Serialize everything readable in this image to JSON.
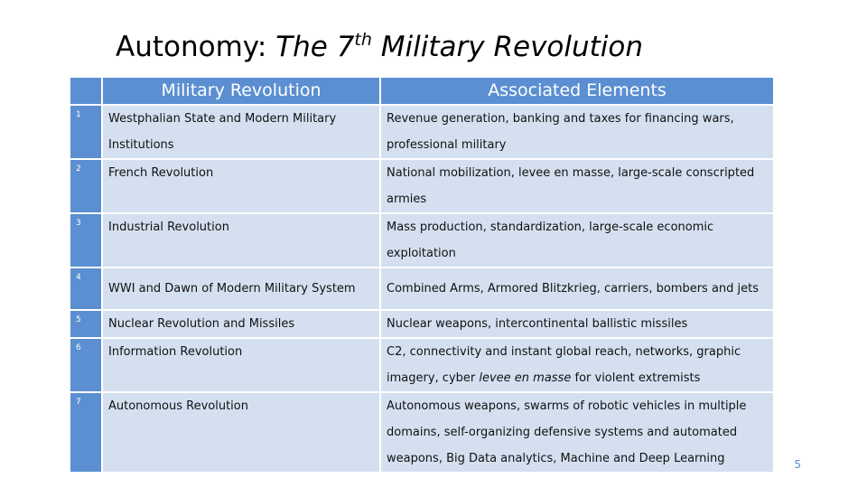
{
  "slide": {
    "title_prefix": "Autonomy: ",
    "title_italic": "The 7",
    "title_sup": "th",
    "title_suffix": " Military Revolution",
    "page_number": "5"
  },
  "table": {
    "headers": [
      "Military Revolution",
      "Associated Elements"
    ],
    "rows": [
      {
        "num": "1",
        "revolution": "Westphalian State and Modern Military Institutions",
        "elements": "Revenue generation, banking and taxes for financing wars, professional military"
      },
      {
        "num": "2",
        "revolution": "French Revolution",
        "elements": "National mobilization, levee en masse, large-scale conscripted armies"
      },
      {
        "num": "3",
        "revolution": "Industrial Revolution",
        "elements": "Mass production, standardization, large-scale economic exploitation"
      },
      {
        "num": "4",
        "revolution": "WWI and Dawn of Modern Military System",
        "elements": "Combined Arms, Armored Blitzkrieg, carriers, bombers and jets"
      },
      {
        "num": "5",
        "revolution": "Nuclear Revolution and Missiles",
        "elements": "Nuclear weapons, intercontinental ballistic missiles"
      },
      {
        "num": "6",
        "revolution": "Information Revolution",
        "elements_a": "C2, connectivity and instant global reach, networks, graphic imagery, cyber ",
        "elements_italic": "levee en masse",
        "elements_b": " for violent extremists"
      },
      {
        "num": "7",
        "revolution": "Autonomous Revolution",
        "elements": "Autonomous weapons, swarms of robotic vehicles in multiple domains, self-organizing defensive systems and automated weapons, Big Data analytics, Machine and  Deep Learning"
      }
    ]
  }
}
